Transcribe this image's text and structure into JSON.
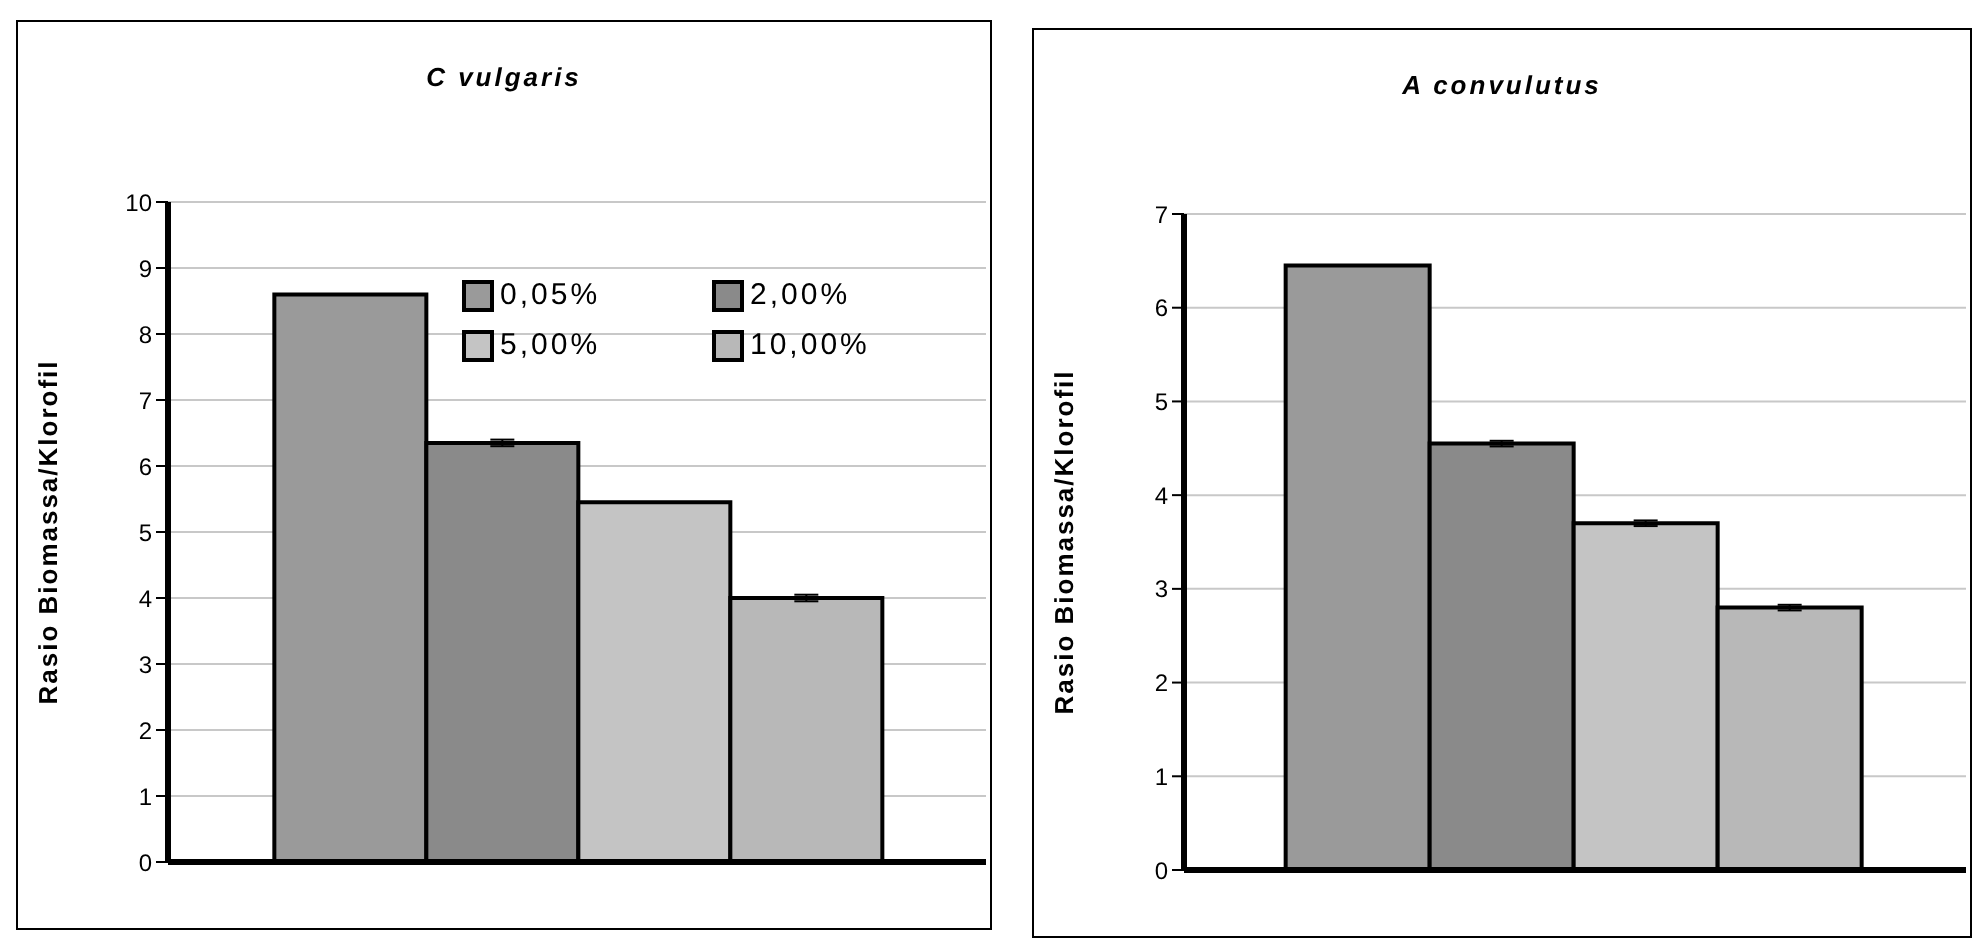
{
  "chart_data": [
    {
      "type": "bar",
      "title": "C vulgaris",
      "ylabel": "Rasio Biomassa/Klorofil",
      "categories": [
        null
      ],
      "ylim": [
        0,
        10
      ],
      "yticks": [
        0,
        1,
        2,
        3,
        4,
        5,
        6,
        7,
        8,
        9,
        10
      ],
      "grid": "y",
      "legend": "top right",
      "series": [
        {
          "name": "0,05%",
          "color": "#9a9a9a",
          "values": [
            8.6
          ]
        },
        {
          "name": "2,00%",
          "color": "#8a8a8a",
          "values": [
            6.35
          ],
          "errors": [
            0.05
          ]
        },
        {
          "name": "5,00%",
          "color": "#c4c4c4",
          "values": [
            5.45
          ]
        },
        {
          "name": "10,00%",
          "color": "#b8b8b8",
          "values": [
            4.0
          ],
          "errors": [
            0.05
          ]
        }
      ]
    },
    {
      "type": "bar",
      "title": "A convulutus",
      "ylabel": "Rasio Biomassa/Klorofil",
      "categories": [
        null
      ],
      "ylim": [
        0,
        7
      ],
      "yticks": [
        0,
        1,
        2,
        3,
        4,
        5,
        6,
        7
      ],
      "grid": "y",
      "series": [
        {
          "color": "#9a9a9a",
          "values": [
            6.45
          ]
        },
        {
          "color": "#8a8a8a",
          "values": [
            4.55
          ],
          "errors": [
            0.03
          ]
        },
        {
          "color": "#c4c4c4",
          "values": [
            3.7
          ],
          "errors": [
            0.03
          ]
        },
        {
          "color": "#b8b8b8",
          "values": [
            2.8
          ],
          "errors": [
            0.03
          ]
        }
      ]
    }
  ]
}
